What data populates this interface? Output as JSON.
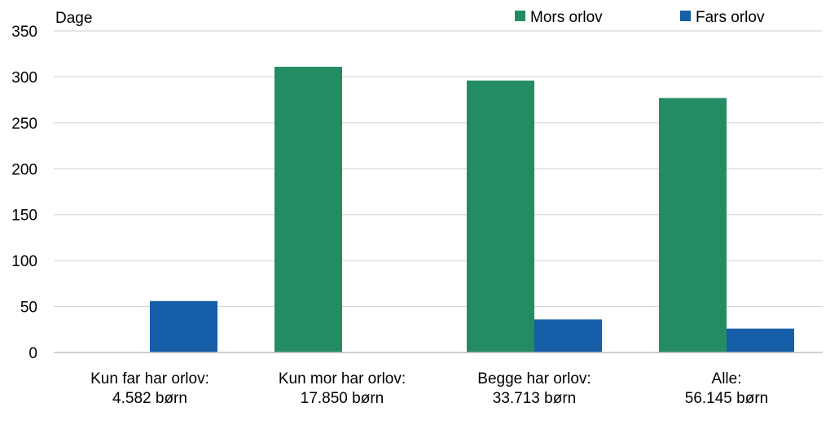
{
  "chart_data": {
    "type": "bar",
    "unit_label": "Dage",
    "ylim": [
      0,
      350
    ],
    "y_ticks": [
      0,
      50,
      100,
      150,
      200,
      250,
      300,
      350
    ],
    "grid": true,
    "legend_position": "top-right",
    "categories": [
      [
        "Kun far har orlov:",
        "4.582 børn"
      ],
      [
        "Kun mor har orlov:",
        "17.850 børn"
      ],
      [
        "Begge har orlov:",
        "33.713 børn"
      ],
      [
        "Alle:",
        "56.145 børn"
      ]
    ],
    "series": [
      {
        "name": "Mors orlov",
        "color": "#238c63",
        "values": [
          0,
          311,
          296,
          277
        ]
      },
      {
        "name": "Fars orlov",
        "color": "#175ea8",
        "values": [
          56,
          0,
          36,
          26
        ]
      }
    ]
  }
}
